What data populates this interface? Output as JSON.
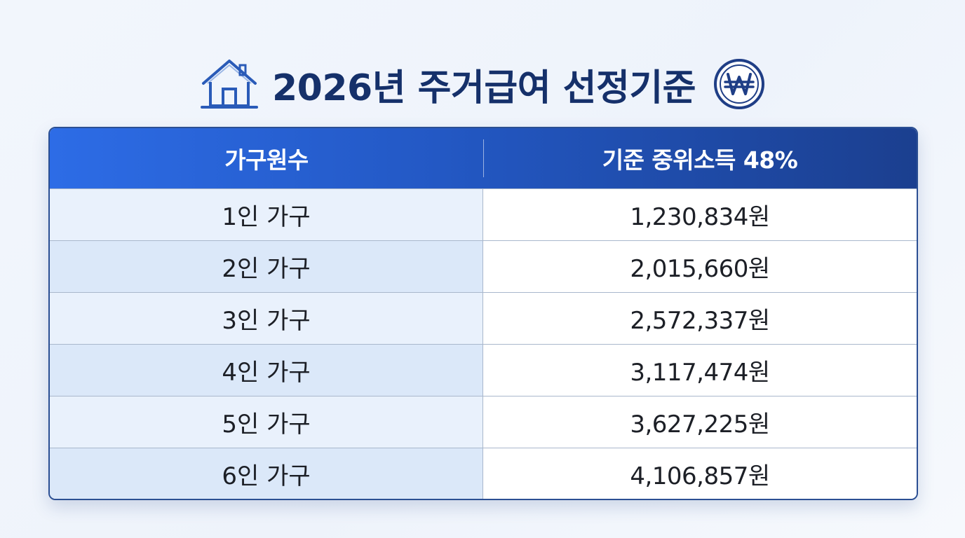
{
  "title": "2026년 주거급여 선정기준",
  "icons": {
    "left": "house-icon",
    "right": "won-coin-icon"
  },
  "colors": {
    "title": "#15306a",
    "header_start": "#2d6ce6",
    "header_end": "#1b3f8f"
  },
  "table": {
    "headers": [
      "가구원수",
      "기준 중위소득 48%"
    ],
    "rows": [
      {
        "household": "1인 가구",
        "amount": "1,230,834원"
      },
      {
        "household": "2인 가구",
        "amount": "2,015,660원"
      },
      {
        "household": "3인 가구",
        "amount": "2,572,337원"
      },
      {
        "household": "4인 가구",
        "amount": "3,117,474원"
      },
      {
        "household": "5인 가구",
        "amount": "3,627,225원"
      },
      {
        "household": "6인 가구",
        "amount": "4,106,857원"
      }
    ]
  }
}
